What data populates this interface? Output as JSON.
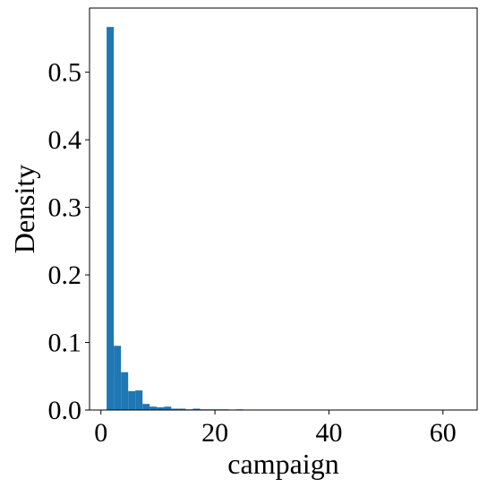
{
  "chart_data": {
    "type": "bar",
    "title": "",
    "xlabel": "campaign",
    "ylabel": "Density",
    "xlim": [
      -2,
      66
    ],
    "ylim": [
      0,
      0.595
    ],
    "xticks": [
      0,
      20,
      40,
      60
    ],
    "yticks": [
      0.0,
      0.1,
      0.2,
      0.3,
      0.4,
      0.5
    ],
    "xtick_labels": [
      "0",
      "20",
      "40",
      "60"
    ],
    "ytick_labels": [
      "0.0",
      "0.1",
      "0.2",
      "0.3",
      "0.4",
      "0.5"
    ],
    "bin_start": 1,
    "bin_width": 1.26,
    "bar_color": "#1f77b4",
    "values": [
      0.567,
      0.095,
      0.056,
      0.028,
      0.029,
      0.009,
      0.005,
      0.004,
      0.005,
      0.002,
      0.002,
      0.001,
      0.002,
      0.001,
      0.001,
      0.001,
      0.001,
      0.0,
      0.001,
      0.0,
      0.0,
      0.0,
      0.0,
      0.0,
      0.0,
      0.0,
      0.0,
      0.0,
      0.0,
      0.0,
      0.0,
      0.0,
      0.0,
      0.0,
      0.0,
      0.0,
      0.0,
      0.0,
      0.0,
      0.0,
      0.0,
      0.0,
      0.0,
      0.0,
      0.0,
      0.0,
      0.0,
      0.0,
      0.0,
      0.0
    ]
  }
}
